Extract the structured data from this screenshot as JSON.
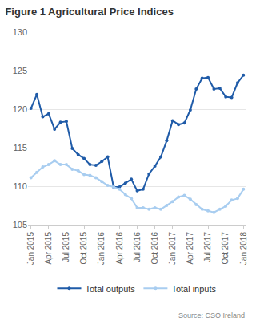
{
  "chart_data": {
    "type": "line",
    "title": "Figure 1 Agricultural Price Indices",
    "source": "Source: CSO Ireland",
    "categories": [
      "Jan 2015",
      null,
      null,
      "Apr 2015",
      null,
      null,
      "Jul 2015",
      null,
      null,
      "Oct 2015",
      null,
      null,
      "Jan 2016",
      null,
      null,
      "Apr 2016",
      null,
      null,
      "Jul 2016",
      null,
      null,
      "Oct 2016",
      null,
      null,
      "Jan 2017",
      null,
      null,
      "Apr 2017",
      null,
      null,
      "Jul 2017",
      null,
      null,
      "Oct 2017",
      null,
      null,
      "Jan 2018"
    ],
    "series": [
      {
        "name": "Total outputs",
        "color": "#1f5ba8",
        "marker": "circle",
        "values": [
          120.1,
          121.9,
          119.0,
          119.4,
          117.4,
          118.3,
          118.4,
          114.9,
          114.1,
          113.6,
          112.8,
          112.7,
          113.2,
          113.8,
          109.9,
          109.9,
          110.4,
          110.9,
          109.4,
          109.6,
          111.6,
          112.6,
          113.8,
          115.9,
          118.5,
          118.0,
          118.2,
          119.9,
          122.6,
          124.0,
          124.1,
          122.6,
          122.7,
          121.6,
          121.5,
          123.4,
          124.4
        ]
      },
      {
        "name": "Total inputs",
        "color": "#a8cdf0",
        "marker": "circle",
        "values": [
          111.1,
          111.8,
          112.5,
          112.8,
          113.3,
          112.8,
          112.8,
          112.2,
          112.0,
          111.5,
          111.4,
          111.1,
          110.6,
          110.1,
          109.9,
          109.6,
          108.9,
          108.4,
          107.2,
          107.2,
          107.0,
          107.2,
          107.0,
          107.5,
          108.0,
          108.6,
          108.8,
          108.3,
          107.6,
          107.0,
          106.8,
          106.6,
          107.0,
          107.4,
          108.2,
          108.4,
          109.6
        ]
      }
    ],
    "ylim": [
      105,
      130
    ],
    "yticks": [
      105,
      110,
      115,
      120,
      125,
      130
    ],
    "grid": true,
    "legend": "bottom"
  }
}
